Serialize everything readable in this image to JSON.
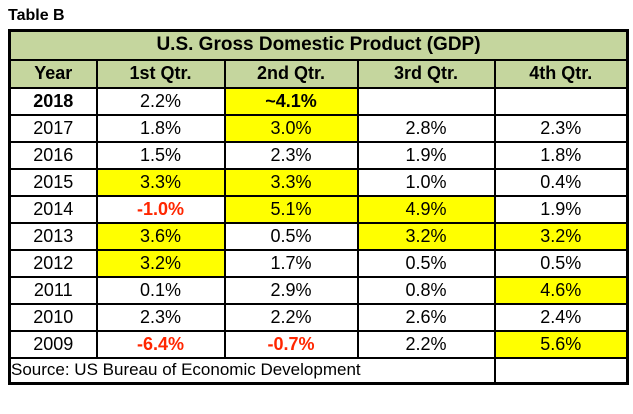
{
  "page_label": "Table B",
  "chart_data": {
    "type": "table",
    "title": "U.S. Gross Domestic Product (GDP)",
    "columns": [
      "Year",
      "1st Qtr.",
      "2nd Qtr.",
      "3rd Qtr.",
      "4th Qtr."
    ],
    "rows": [
      {
        "year": "2018",
        "year_bold": true,
        "cells": [
          {
            "text": "2.2%"
          },
          {
            "text": "~4.1%",
            "highlight": true,
            "bold": true
          },
          {
            "text": ""
          },
          {
            "text": ""
          }
        ]
      },
      {
        "year": "2017",
        "cells": [
          {
            "text": "1.8%"
          },
          {
            "text": "3.0%",
            "highlight": true
          },
          {
            "text": "2.8%"
          },
          {
            "text": "2.3%"
          }
        ]
      },
      {
        "year": "2016",
        "cells": [
          {
            "text": "1.5%"
          },
          {
            "text": "2.3%"
          },
          {
            "text": "1.9%"
          },
          {
            "text": "1.8%"
          }
        ]
      },
      {
        "year": "2015",
        "cells": [
          {
            "text": "3.3%",
            "highlight": true
          },
          {
            "text": "3.3%",
            "highlight": true
          },
          {
            "text": "1.0%"
          },
          {
            "text": "0.4%"
          }
        ]
      },
      {
        "year": "2014",
        "cells": [
          {
            "text": "-1.0%",
            "negative": true,
            "bold": true
          },
          {
            "text": "5.1%",
            "highlight": true
          },
          {
            "text": "4.9%",
            "highlight": true
          },
          {
            "text": "1.9%"
          }
        ]
      },
      {
        "year": "2013",
        "cells": [
          {
            "text": "3.6%",
            "highlight": true
          },
          {
            "text": "0.5%"
          },
          {
            "text": "3.2%",
            "highlight": true
          },
          {
            "text": "3.2%",
            "highlight": true
          }
        ]
      },
      {
        "year": "2012",
        "cells": [
          {
            "text": "3.2%",
            "highlight": true
          },
          {
            "text": "1.7%"
          },
          {
            "text": "0.5%"
          },
          {
            "text": "0.5%"
          }
        ]
      },
      {
        "year": "2011",
        "cells": [
          {
            "text": "0.1%"
          },
          {
            "text": "2.9%"
          },
          {
            "text": "0.8%"
          },
          {
            "text": "4.6%",
            "highlight": true
          }
        ]
      },
      {
        "year": "2010",
        "cells": [
          {
            "text": "2.3%"
          },
          {
            "text": "2.2%"
          },
          {
            "text": "2.6%"
          },
          {
            "text": "2.4%"
          }
        ]
      },
      {
        "year": "2009",
        "cells": [
          {
            "text": "-6.4%",
            "negative": true,
            "bold": true
          },
          {
            "text": "-0.7%",
            "negative": true,
            "bold": true
          },
          {
            "text": "2.2%"
          },
          {
            "text": "5.6%",
            "highlight": true
          }
        ]
      }
    ],
    "source": "Source: US Bureau of Economic Development"
  },
  "colors": {
    "header_bg": "#C5D69E",
    "highlight_bg": "#FFFF00",
    "negative_text": "#FF2600",
    "border": "#000000"
  }
}
